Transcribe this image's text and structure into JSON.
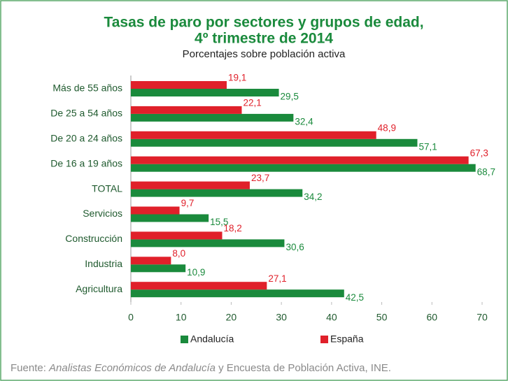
{
  "chart_data": {
    "type": "bar",
    "orientation": "horizontal",
    "title": [
      "Tasas de paro por sectores y grupos de edad,",
      "4º trimestre de 2014"
    ],
    "subtitle": "Porcentajes sobre población activa",
    "categories": [
      "Más de 55 años",
      "De 25 a 54 años",
      "De 20 a 24 años",
      "De 16 a 19 años",
      "TOTAL",
      "Servicios",
      "Construcción",
      "Industria",
      "Agricultura"
    ],
    "series": [
      {
        "name": "Andalucía",
        "color": "#1a8a3c",
        "values": [
          29.5,
          32.4,
          57.1,
          68.7,
          34.2,
          15.5,
          30.6,
          10.9,
          42.5
        ],
        "value_labels": [
          "29,5",
          "32,4",
          "57,1",
          "68,7",
          "34,2",
          "15,5",
          "30,6",
          "10,9",
          "42,5"
        ]
      },
      {
        "name": "España",
        "color": "#e0202a",
        "values": [
          19.1,
          22.1,
          48.9,
          67.3,
          23.7,
          9.7,
          18.2,
          8.0,
          27.1
        ],
        "value_labels": [
          "19,1",
          "22,1",
          "48,9",
          "67,3",
          "23,7",
          "9,7",
          "18,2",
          "8,0",
          "27,1"
        ]
      }
    ],
    "xlim": [
      0,
      70
    ],
    "xticks": [
      0,
      10,
      20,
      30,
      40,
      50,
      60,
      70
    ],
    "grid": false,
    "legend": "bottom",
    "source": {
      "prefix": "Fuente:",
      "italic": "Analistas Económicos de Andalucía",
      "suffix": "y Encuesta de Población Activa, INE."
    }
  }
}
